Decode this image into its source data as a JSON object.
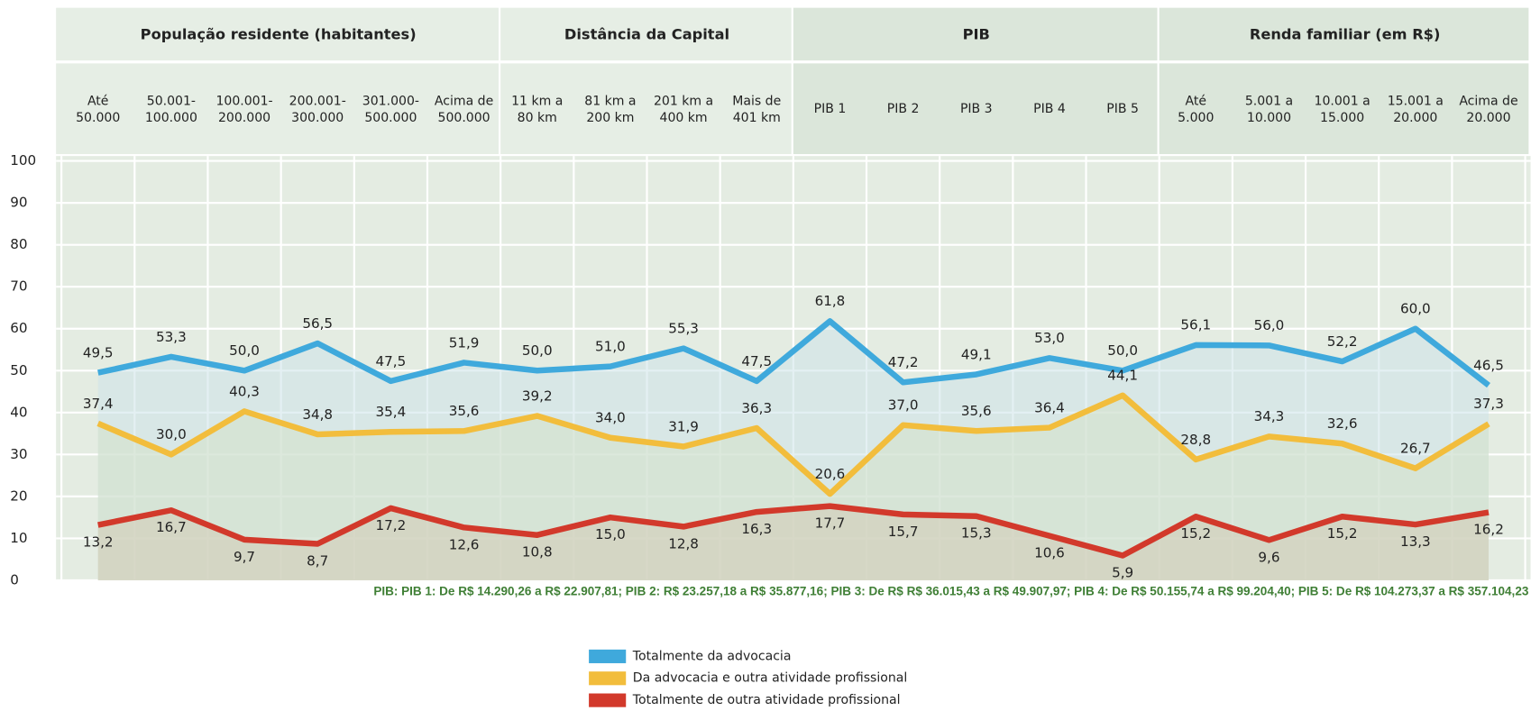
{
  "chart_data": {
    "type": "line",
    "groups": [
      {
        "name": "População residente (habitantes)",
        "categories": [
          "Até\n50.000",
          "50.001-\n100.000",
          "100.001-\n200.000",
          "200.001-\n300.000",
          "301.000-\n500.000",
          "Acima de\n500.000"
        ]
      },
      {
        "name": "Distância da Capital",
        "categories": [
          "11 km a\n80 km",
          "81 km a\n200 km",
          "201 km a\n400 km",
          "Mais de\n401 km"
        ]
      },
      {
        "name": "PIB",
        "categories": [
          "PIB 1",
          "PIB 2",
          "PIB 3",
          "PIB 4",
          "PIB 5"
        ]
      },
      {
        "name": "Renda familiar (em R$)",
        "categories": [
          "Até\n5.000",
          "5.001 a\n10.000",
          "10.001 a\n15.000",
          "15.001 a\n20.000",
          "Acima de\n20.000"
        ]
      }
    ],
    "series": [
      {
        "name": "Totalmente da advocacia",
        "color": "#3fa9dc",
        "area": "#cde4ea",
        "values": [
          49.5,
          53.3,
          50.0,
          56.5,
          47.5,
          51.9,
          50.0,
          51.0,
          55.3,
          47.5,
          61.8,
          47.2,
          49.1,
          53.0,
          50.0,
          56.1,
          56.0,
          52.2,
          60.0,
          46.5
        ],
        "value_labels": [
          "49,5",
          "53,3",
          "50,0",
          "56,5",
          "47,5",
          "51,9",
          "50,0",
          "51,0",
          "55,3",
          "47,5",
          "61,8",
          "47,2",
          "49,1",
          "53,0",
          "50,0",
          "56,1",
          "56,0",
          "52,2",
          "60,0",
          "46,5"
        ]
      },
      {
        "name": "Da advocacia e outra atividade profissional",
        "color": "#f2bd3c",
        "area": "#d6e2c8",
        "values": [
          37.4,
          30.0,
          40.3,
          34.8,
          35.4,
          35.6,
          39.2,
          34.0,
          31.9,
          36.3,
          20.6,
          37.0,
          35.6,
          36.4,
          44.1,
          28.8,
          34.3,
          32.6,
          26.7,
          37.3
        ],
        "value_labels": [
          "37,4",
          "30,0",
          "40,3",
          "34,8",
          "35,4",
          "35,6",
          "39,2",
          "34,0",
          "31,9",
          "36,3",
          "20,6",
          "37,0",
          "35,6",
          "36,4",
          "44,1",
          "28,8",
          "34,3",
          "32,6",
          "26,7",
          "37,3"
        ]
      },
      {
        "name": "Totalmente de outra atividade profissional",
        "color": "#d2392b",
        "area": "#d3cbb6",
        "values": [
          13.2,
          16.7,
          9.7,
          8.7,
          17.2,
          12.6,
          10.8,
          15.0,
          12.8,
          16.3,
          17.7,
          15.7,
          15.3,
          10.6,
          5.9,
          15.2,
          9.6,
          15.2,
          13.3,
          16.2
        ],
        "value_labels": [
          "13,2",
          "16,7",
          "9,7",
          "8,7",
          "17,2",
          "12,6",
          "10,8",
          "15,0",
          "12,8",
          "16,3",
          "17,7",
          "15,7",
          "15,3",
          "10,6",
          "5,9",
          "15,2",
          "9,6",
          "15,2",
          "13,3",
          "16,2"
        ]
      }
    ],
    "ylim": [
      0,
      100
    ],
    "yticks": [
      0,
      10,
      20,
      30,
      40,
      50,
      60,
      70,
      80,
      90,
      100
    ],
    "grid": true,
    "note": "PIB: PIB 1: De R$ 14.290,26 a R$ 22.907,81; PIB 2: R$ 23.257,18  a R$ 35.877,16; PIB 3: De R$ R$ 36.015,43 a R$ 49.907,97; PIB 4: De R$ 50.155,74 a R$ 99.204,40; PIB 5: De R$ 104.273,37 a R$ 357.104,23"
  }
}
